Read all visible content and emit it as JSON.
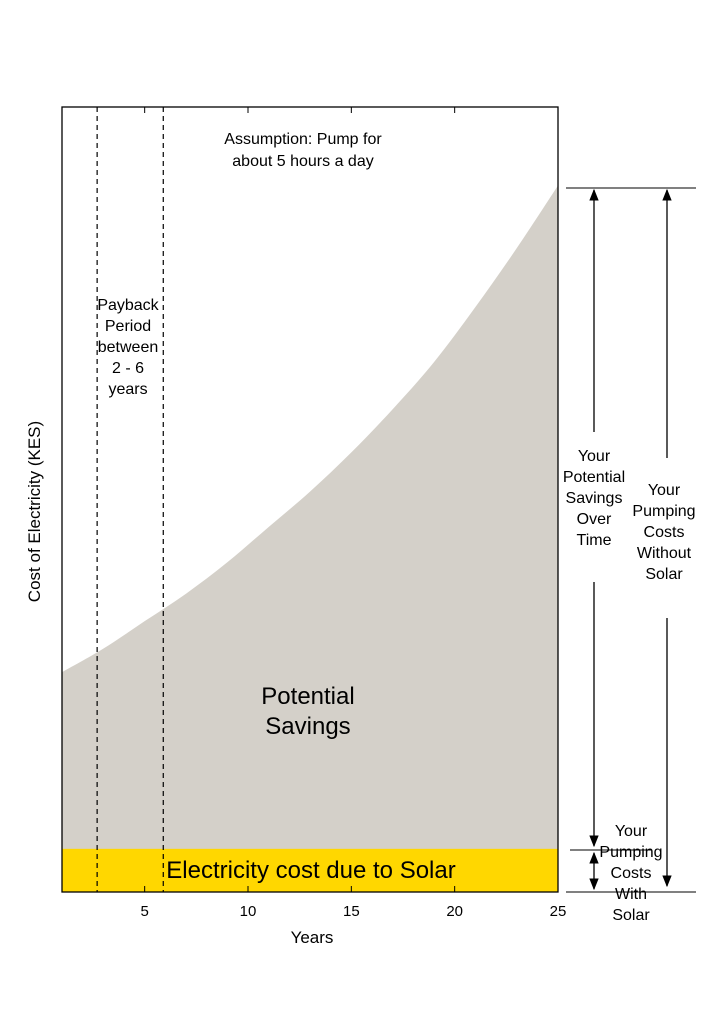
{
  "chart_data": {
    "type": "area",
    "title": "",
    "xlabel": "Years",
    "ylabel": "Cost of Electricity (KES)",
    "xlim": [
      1,
      25
    ],
    "xticks": [
      "5",
      "10",
      "15",
      "20",
      "25"
    ],
    "ylim": [
      0,
      100
    ],
    "grid": false,
    "legend": "none",
    "series": [
      {
        "name": "Your Pumping Costs Without Solar",
        "x": [
          1,
          3,
          5,
          7,
          9,
          11,
          13,
          15,
          17,
          19,
          21,
          23,
          25
        ],
        "values": [
          28,
          31,
          34.5,
          38,
          42,
          46.5,
          51,
          56,
          61.5,
          67.5,
          74.5,
          82,
          90
        ],
        "color": "#d4d0c9"
      },
      {
        "name": "Electricity cost due to Solar",
        "x": [
          1,
          25
        ],
        "values": [
          5.5,
          5.5
        ],
        "color": "#ffd700"
      }
    ],
    "payback_lines": [
      2.7,
      5.9
    ],
    "annotations": {
      "assumption": [
        "Assumption: Pump for",
        "about 5 hours a day"
      ],
      "payback": [
        "Payback",
        "Period",
        "between",
        "2 - 6",
        "years"
      ],
      "potential_savings": [
        "Potential",
        "Savings"
      ],
      "solar_cost": "Electricity cost due to Solar",
      "savings_over_time": [
        "Your",
        "Potential",
        "Savings",
        "Over",
        "Time"
      ],
      "costs_without_solar": [
        "Your",
        "Pumping",
        "Costs",
        "Without",
        "Solar"
      ],
      "costs_with_solar": [
        "Your",
        "Pumping",
        "Costs",
        "With",
        "Solar"
      ]
    }
  }
}
